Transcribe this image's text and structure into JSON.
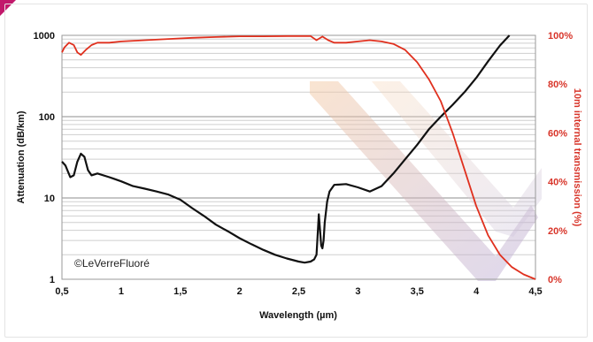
{
  "chart_data": {
    "type": "line",
    "xlabel": "Wavelength (µm)",
    "ylabel": "Attenuation (dB/km)",
    "y2label": "10m internal transmission (%)",
    "xlim": [
      0.5,
      4.5
    ],
    "ylim": [
      1,
      1000
    ],
    "y2lim": [
      0,
      100
    ],
    "yscale": "log",
    "grid": true,
    "x_ticks": [
      "0,5",
      "1",
      "1,5",
      "2",
      "2,5",
      "3",
      "3,5",
      "4",
      "4,5"
    ],
    "y_ticks": [
      "1000",
      "100",
      "10",
      "1"
    ],
    "y2_ticks": [
      "100%",
      "80%",
      "60%",
      "40%",
      "20%",
      "0%"
    ],
    "colors": {
      "attenuation": "#111111",
      "transmission": "#e0301e",
      "right_axis": "#d8352a"
    },
    "watermark": "©LeVerreFluoré",
    "series": [
      {
        "axis": "left",
        "x": [
          0.5,
          0.53,
          0.57,
          0.6,
          0.63,
          0.66,
          0.69,
          0.72,
          0.75,
          0.8,
          0.9,
          1.0,
          1.1,
          1.2,
          1.3,
          1.4,
          1.5,
          1.6,
          1.7,
          1.8,
          1.9,
          2.0,
          2.1,
          2.2,
          2.3,
          2.4,
          2.5,
          2.55,
          2.6,
          2.63,
          2.65,
          2.66,
          2.67,
          2.68,
          2.69,
          2.7,
          2.71,
          2.72,
          2.74,
          2.76,
          2.8,
          2.9,
          3.0,
          3.1,
          3.2,
          3.3,
          3.4,
          3.5,
          3.6,
          3.7,
          3.8,
          3.9,
          4.0,
          4.1,
          4.2,
          4.28
        ],
        "values": [
          28,
          25,
          18,
          19,
          28,
          35,
          32,
          22,
          19,
          20,
          18,
          16,
          14,
          13,
          12,
          11,
          9.5,
          7.5,
          6,
          4.7,
          3.9,
          3.2,
          2.7,
          2.3,
          2.0,
          1.8,
          1.65,
          1.6,
          1.65,
          1.75,
          2.0,
          3.5,
          6.3,
          4.0,
          2.6,
          2.4,
          3.0,
          5.0,
          9.0,
          12,
          14.5,
          14.8,
          13.5,
          12,
          14,
          20,
          30,
          45,
          70,
          100,
          140,
          200,
          300,
          480,
          750,
          1000
        ]
      },
      {
        "axis": "right",
        "x": [
          0.5,
          0.52,
          0.56,
          0.6,
          0.63,
          0.66,
          0.7,
          0.75,
          0.8,
          0.9,
          1.0,
          1.2,
          1.4,
          1.6,
          1.8,
          2.0,
          2.2,
          2.4,
          2.6,
          2.65,
          2.7,
          2.75,
          2.8,
          2.9,
          3.0,
          3.1,
          3.2,
          3.3,
          3.4,
          3.5,
          3.6,
          3.7,
          3.8,
          3.9,
          4.0,
          4.1,
          4.2,
          4.3,
          4.4,
          4.5
        ],
        "values": [
          93,
          95,
          97,
          96,
          93,
          92,
          94,
          96,
          97,
          97,
          97.5,
          98,
          98.5,
          99,
          99.3,
          99.6,
          99.6,
          99.7,
          99.7,
          98,
          99.5,
          98,
          97,
          97,
          97.5,
          98,
          97.5,
          96.5,
          94,
          89,
          82,
          73,
          60,
          45,
          30,
          18,
          10,
          5,
          2,
          0
        ]
      }
    ]
  }
}
